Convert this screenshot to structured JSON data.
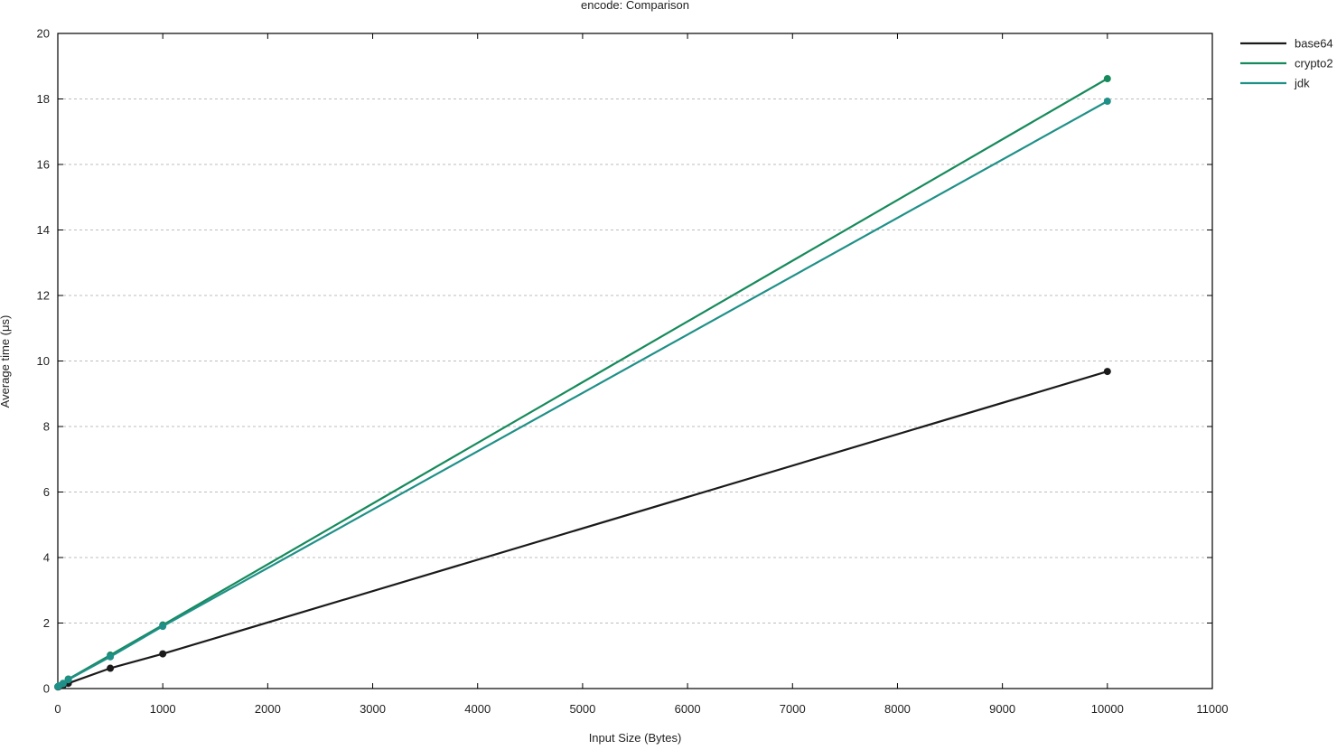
{
  "chart_data": {
    "type": "line",
    "title": "encode: Comparison",
    "xlabel": "Input Size (Bytes)",
    "ylabel": "Average time (μs)",
    "xlim": [
      0,
      11000
    ],
    "ylim": [
      0,
      20
    ],
    "xticks": [
      "0",
      "1000",
      "2000",
      "3000",
      "4000",
      "5000",
      "6000",
      "7000",
      "8000",
      "9000",
      "10000",
      "11000"
    ],
    "yticks": [
      "0",
      "2",
      "4",
      "6",
      "8",
      "10",
      "12",
      "14",
      "16",
      "18",
      "20"
    ],
    "grid": "horizontal-dashed",
    "legend_position": "right",
    "series": [
      {
        "name": "base64",
        "color": "#1a1a1a",
        "x": [
          1,
          10,
          50,
          100,
          500,
          1000,
          10000
        ],
        "y": [
          0.05,
          0.06,
          0.1,
          0.16,
          0.62,
          1.06,
          9.68
        ]
      },
      {
        "name": "crypto2",
        "color": "#168a5c",
        "x": [
          1,
          10,
          50,
          100,
          500,
          1000,
          10000
        ],
        "y": [
          0.06,
          0.08,
          0.16,
          0.29,
          1.02,
          1.94,
          18.62
        ]
      },
      {
        "name": "jdk",
        "color": "#1f9088",
        "x": [
          1,
          10,
          50,
          100,
          500,
          1000,
          10000
        ],
        "y": [
          0.06,
          0.08,
          0.15,
          0.27,
          0.97,
          1.9,
          17.93
        ]
      }
    ]
  }
}
